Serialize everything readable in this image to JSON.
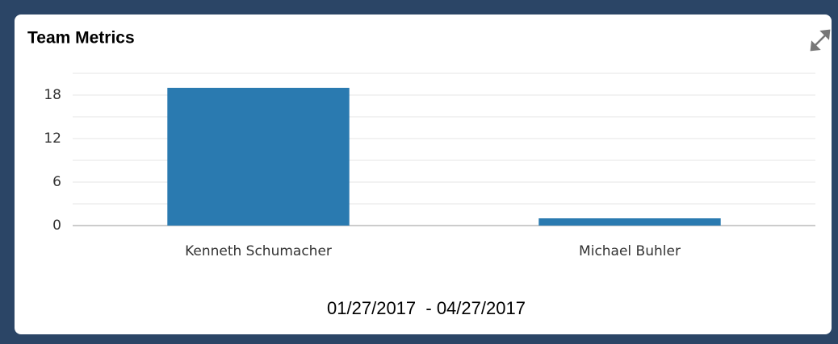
{
  "chart_data": {
    "type": "bar",
    "title": "Team Metrics",
    "categories": [
      "Kenneth Schumacher",
      "Michael Buhler"
    ],
    "values": [
      19,
      1
    ],
    "color": "#2a7ab0",
    "ylim": [
      0,
      21
    ],
    "yticks": [
      0,
      6,
      12,
      18
    ],
    "minor_gridlines": [
      3,
      9,
      15,
      21
    ],
    "grid": true,
    "xlabel": "01/27/2017  - 04/27/2017"
  }
}
